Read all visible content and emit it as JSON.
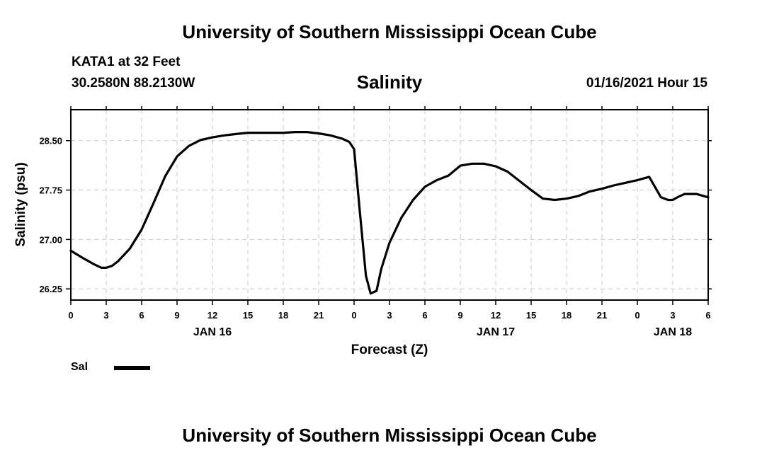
{
  "header": {
    "title": "University of Southern Mississippi Ocean Cube",
    "station": "KATA1 at 32 Feet",
    "coords": "30.2580N 88.2130W",
    "subtitle": "Salinity",
    "datetime": "01/16/2021 Hour 15"
  },
  "footer": {
    "title": "University of Southern Mississippi Ocean Cube"
  },
  "legend": {
    "label": "Sal",
    "color": "#000000"
  },
  "chart_data": {
    "type": "line",
    "title": "Salinity",
    "xlabel": "Forecast (Z)",
    "ylabel": "Salinity (psu)",
    "xlim": [
      0,
      54
    ],
    "ylim": [
      26.08,
      28.97
    ],
    "grid": true,
    "x_ticks": [
      {
        "x": 0,
        "label": "0"
      },
      {
        "x": 3,
        "label": "3"
      },
      {
        "x": 6,
        "label": "6"
      },
      {
        "x": 9,
        "label": "9"
      },
      {
        "x": 12,
        "label": "12"
      },
      {
        "x": 15,
        "label": "15"
      },
      {
        "x": 18,
        "label": "18"
      },
      {
        "x": 21,
        "label": "21"
      },
      {
        "x": 24,
        "label": "0"
      },
      {
        "x": 27,
        "label": "3"
      },
      {
        "x": 30,
        "label": "6"
      },
      {
        "x": 33,
        "label": "9"
      },
      {
        "x": 36,
        "label": "12"
      },
      {
        "x": 39,
        "label": "15"
      },
      {
        "x": 42,
        "label": "18"
      },
      {
        "x": 45,
        "label": "21"
      },
      {
        "x": 48,
        "label": "0"
      },
      {
        "x": 51,
        "label": "3"
      },
      {
        "x": 54,
        "label": "6"
      }
    ],
    "y_ticks": [
      {
        "y": 26.25,
        "label": "26.25"
      },
      {
        "y": 27.0,
        "label": "27.00"
      },
      {
        "y": 27.75,
        "label": "27.75"
      },
      {
        "y": 28.5,
        "label": "28.50"
      }
    ],
    "day_labels": [
      {
        "x": 12,
        "label": "JAN 16"
      },
      {
        "x": 36,
        "label": "JAN 17"
      },
      {
        "x": 51,
        "label": "JAN 18"
      }
    ],
    "series": [
      {
        "name": "Sal",
        "x": [
          0,
          1,
          2,
          2.6,
          3,
          3.5,
          4,
          5,
          6,
          7,
          8,
          9,
          10,
          11,
          12,
          13,
          14,
          15,
          16,
          17,
          18,
          19,
          20,
          21,
          22,
          23,
          23.6,
          24,
          24.5,
          25,
          25.4,
          25.9,
          26.3,
          27,
          28,
          29,
          30,
          31,
          32,
          33,
          34,
          35,
          36,
          37,
          38,
          39,
          40,
          41,
          42,
          43,
          44,
          45,
          46,
          47,
          48,
          49,
          50,
          50.6,
          51,
          51.5,
          52,
          53,
          54
        ],
        "y": [
          26.83,
          26.72,
          26.62,
          26.57,
          26.57,
          26.6,
          26.67,
          26.86,
          27.15,
          27.55,
          27.96,
          28.26,
          28.42,
          28.51,
          28.55,
          28.58,
          28.6,
          28.62,
          28.62,
          28.62,
          28.62,
          28.63,
          28.63,
          28.61,
          28.58,
          28.53,
          28.48,
          28.37,
          27.4,
          26.45,
          26.18,
          26.22,
          26.55,
          26.95,
          27.33,
          27.6,
          27.8,
          27.9,
          27.97,
          28.12,
          28.15,
          28.15,
          28.11,
          28.03,
          27.89,
          27.75,
          27.62,
          27.6,
          27.62,
          27.66,
          27.73,
          27.77,
          27.82,
          27.86,
          27.9,
          27.95,
          27.64,
          27.6,
          27.6,
          27.65,
          27.69,
          27.69,
          27.64
        ]
      }
    ]
  }
}
